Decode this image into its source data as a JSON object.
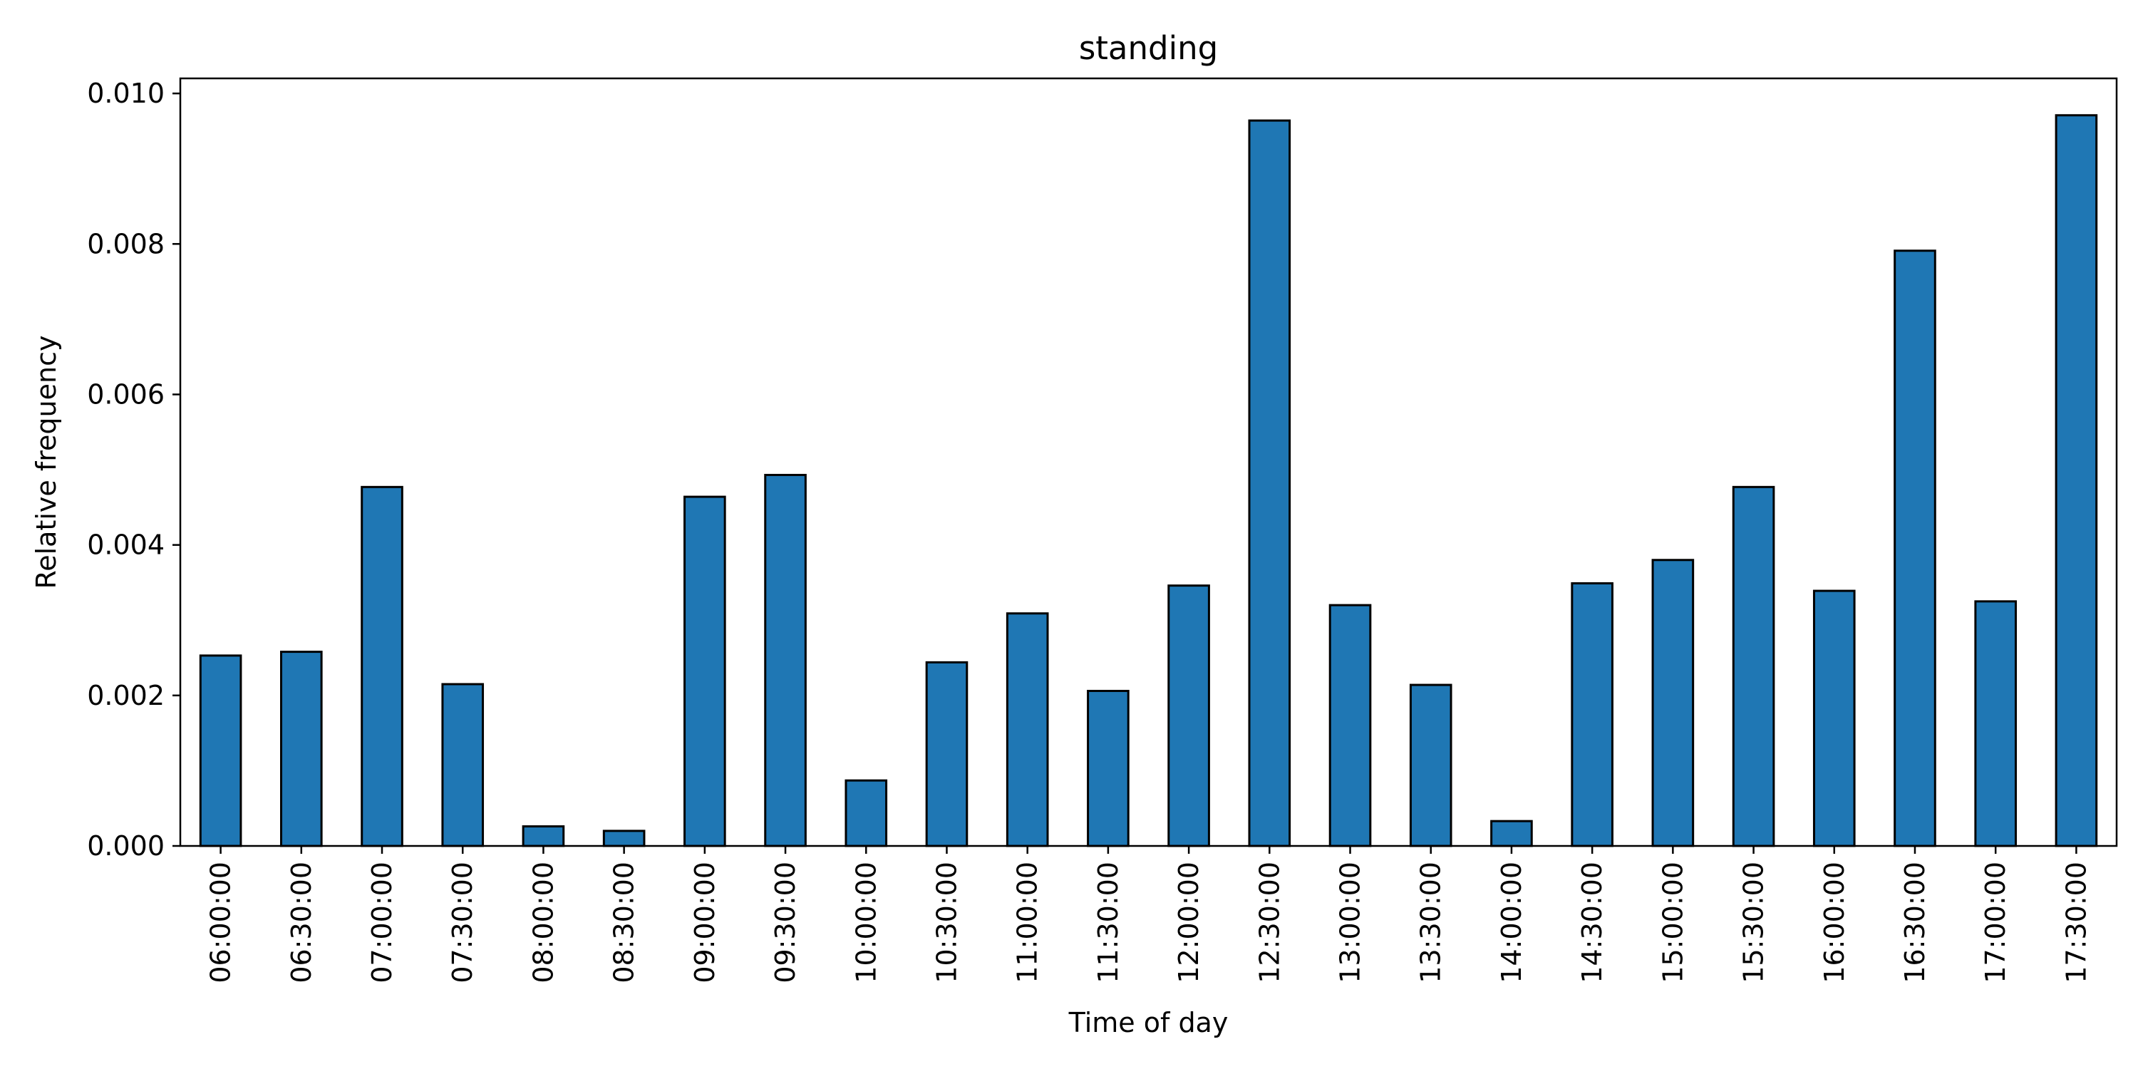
{
  "chart_data": {
    "type": "bar",
    "title": "standing",
    "xlabel": "Time of day",
    "ylabel": "Relative frequency",
    "categories": [
      "06:00:00",
      "06:30:00",
      "07:00:00",
      "07:30:00",
      "08:00:00",
      "08:30:00",
      "09:00:00",
      "09:30:00",
      "10:00:00",
      "10:30:00",
      "11:00:00",
      "11:30:00",
      "12:00:00",
      "12:30:00",
      "13:00:00",
      "13:30:00",
      "14:00:00",
      "14:30:00",
      "15:00:00",
      "15:30:00",
      "16:00:00",
      "16:30:00",
      "17:00:00",
      "17:30:00"
    ],
    "values": [
      0.00253,
      0.00258,
      0.00477,
      0.00215,
      0.00026,
      0.0002,
      0.00464,
      0.00493,
      0.00087,
      0.00244,
      0.00309,
      0.00206,
      0.00346,
      0.00964,
      0.0032,
      0.00214,
      0.00033,
      0.00349,
      0.0038,
      0.00477,
      0.00339,
      0.00791,
      0.00325,
      0.00971
    ],
    "ylim": [
      0,
      0.0102
    ],
    "yticks": [
      0.0,
      0.002,
      0.004,
      0.006,
      0.008,
      0.01
    ],
    "ytick_labels": [
      "0.000",
      "0.002",
      "0.004",
      "0.006",
      "0.008",
      "0.010"
    ],
    "bar_color": "#1f77b4",
    "edge_color": "#000000",
    "grid": false,
    "legend": "none"
  }
}
